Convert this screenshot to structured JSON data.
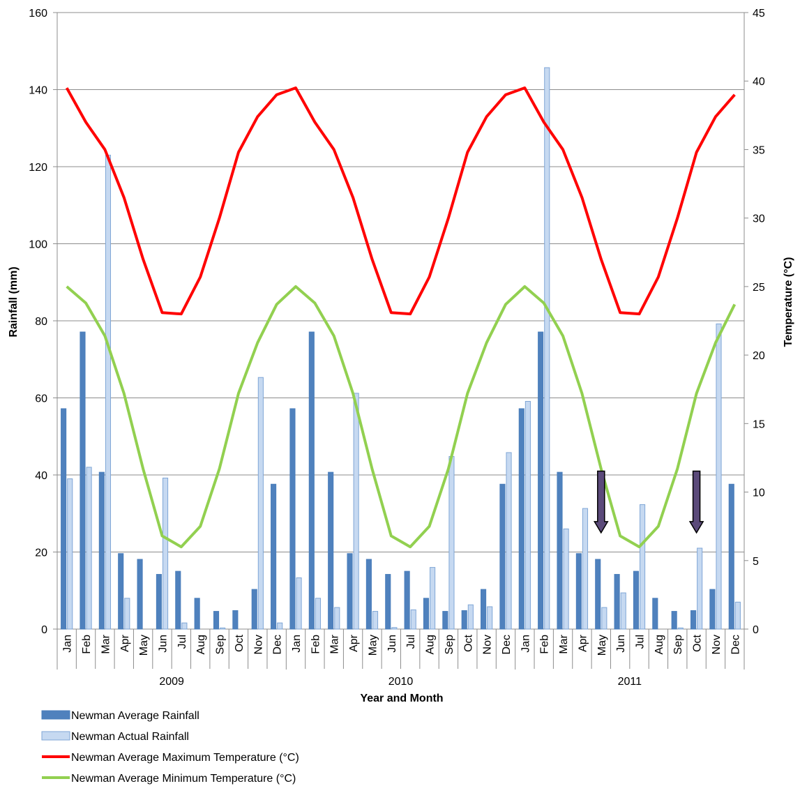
{
  "chart_data": {
    "type": "bar",
    "xlabel": "Year and Month",
    "ylabel": "Rainfall (mm)",
    "y2label": "Temperature (°C)",
    "ylim": [
      0,
      160
    ],
    "y2lim": [
      0,
      45
    ],
    "yticks": [
      "0",
      "20",
      "40",
      "60",
      "80",
      "100",
      "120",
      "140",
      "160"
    ],
    "y2ticks": [
      "0",
      "5",
      "10",
      "15",
      "20",
      "25",
      "30",
      "35",
      "40",
      "45"
    ],
    "grid": true,
    "legend_position": "bottom-left",
    "years": [
      "2009",
      "2010",
      "2011"
    ],
    "categories": [
      "Jan",
      "Feb",
      "Mar",
      "Apr",
      "May",
      "Jun",
      "Jul",
      "Aug",
      "Sep",
      "Oct",
      "Nov",
      "Dec",
      "Jan",
      "Feb",
      "Mar",
      "Apr",
      "May",
      "Jun",
      "Jul",
      "Aug",
      "Sep",
      "Oct",
      "Nov",
      "Dec",
      "Jan",
      "Feb",
      "Mar",
      "Apr",
      "May",
      "Jun",
      "Jul",
      "Aug",
      "Sep",
      "Oct",
      "Nov",
      "Dec"
    ],
    "series": [
      {
        "name": "Newman Average Rainfall",
        "kind": "bar",
        "axis": "left",
        "color": "#4f81bd",
        "values": [
          57.2,
          77.1,
          40.7,
          19.6,
          18.1,
          14.2,
          15.0,
          8.0,
          4.6,
          4.8,
          10.3,
          37.6,
          57.2,
          77.1,
          40.7,
          19.6,
          18.1,
          14.2,
          15.0,
          8.0,
          4.6,
          4.8,
          10.3,
          37.6,
          57.2,
          77.1,
          40.7,
          19.6,
          18.1,
          14.2,
          15.0,
          8.0,
          4.6,
          4.8,
          10.3,
          37.6
        ]
      },
      {
        "name": "Newman Actual Rainfall",
        "kind": "bar",
        "axis": "left",
        "color": "#c6d9f1",
        "values": [
          39.0,
          42.0,
          123.0,
          8.0,
          0.0,
          39.2,
          1.6,
          0.0,
          0.3,
          0.0,
          65.3,
          1.6,
          13.3,
          8.0,
          5.6,
          61.2,
          4.6,
          0.4,
          5.0,
          16.0,
          44.8,
          6.3,
          5.8,
          45.8,
          59.1,
          145.7,
          26.0,
          31.3,
          5.6,
          9.4,
          32.3,
          0.0,
          0.3,
          21.0,
          79.2,
          7.0
        ]
      },
      {
        "name": "Newman Average Maximum Temperature (°C)",
        "kind": "line",
        "axis": "right",
        "color": "#ff0000",
        "values": [
          39.5,
          37.0,
          35.0,
          31.5,
          27.0,
          23.1,
          23.0,
          25.7,
          30.0,
          34.8,
          37.4,
          39.0,
          39.5,
          37.0,
          35.0,
          31.5,
          27.0,
          23.1,
          23.0,
          25.7,
          30.0,
          34.8,
          37.4,
          39.0,
          39.5,
          37.0,
          35.0,
          31.5,
          27.0,
          23.1,
          23.0,
          25.7,
          30.0,
          34.8,
          37.4,
          39.0
        ]
      },
      {
        "name": "Newman Average Minimum Temperature (°C)",
        "kind": "line",
        "axis": "right",
        "color": "#92d050",
        "values": [
          25.0,
          23.8,
          21.4,
          17.2,
          11.7,
          6.8,
          6.0,
          7.5,
          11.7,
          17.2,
          20.9,
          23.7,
          25.0,
          23.8,
          21.4,
          17.2,
          11.7,
          6.8,
          6.0,
          7.5,
          11.7,
          17.2,
          20.9,
          23.7,
          25.0,
          23.8,
          21.4,
          17.2,
          11.7,
          6.8,
          6.0,
          7.5,
          11.7,
          17.2,
          20.9,
          23.7
        ]
      }
    ],
    "annotations": [
      {
        "type": "arrow",
        "direction": "down",
        "category_index": 28,
        "from_y": 41,
        "to_y": 25,
        "color": "#5b4a7a"
      },
      {
        "type": "arrow",
        "direction": "down",
        "category_index": 33,
        "from_y": 41,
        "to_y": 25,
        "color": "#5b4a7a"
      }
    ]
  }
}
